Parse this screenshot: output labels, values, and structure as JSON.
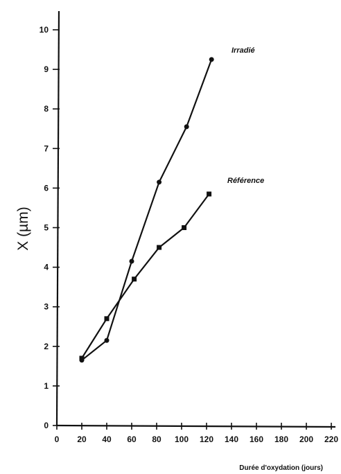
{
  "chart_data": {
    "type": "line",
    "title": "",
    "xlabel": "Durée d'oxydation (jours)",
    "ylabel": "X (µm)",
    "xlim": [
      0,
      220
    ],
    "ylim": [
      0,
      10
    ],
    "x_ticks": [
      0,
      20,
      40,
      60,
      80,
      100,
      120,
      140,
      160,
      180,
      200,
      220
    ],
    "y_ticks": [
      0,
      1,
      2,
      3,
      4,
      5,
      6,
      7,
      8,
      9,
      10
    ],
    "grid": false,
    "legend": "inline labels near line ends",
    "series": [
      {
        "name": "Irradié",
        "marker": "circle",
        "x": [
          20,
          40,
          60,
          82,
          104,
          124
        ],
        "y": [
          1.65,
          2.15,
          4.15,
          6.15,
          7.55,
          9.25
        ]
      },
      {
        "name": "Référence",
        "marker": "square",
        "x": [
          20,
          40,
          62,
          82,
          102,
          122
        ],
        "y": [
          1.7,
          2.7,
          3.7,
          4.5,
          5.0,
          5.85
        ]
      }
    ]
  }
}
